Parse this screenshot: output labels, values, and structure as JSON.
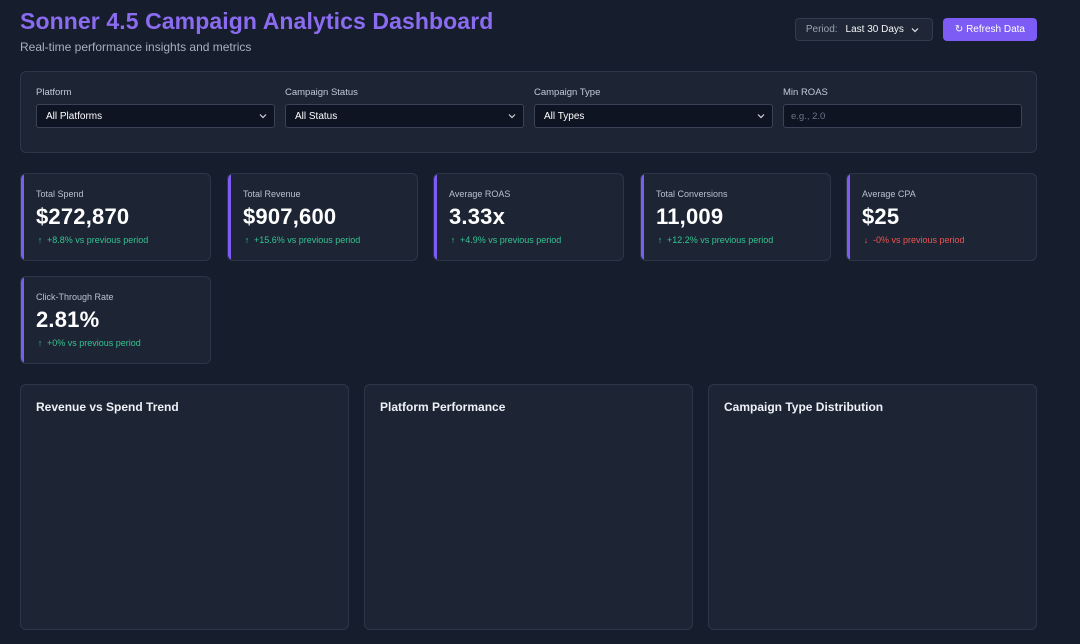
{
  "header": {
    "title": "Sonner 4.5 Campaign Analytics Dashboard",
    "subtitle": "Real-time performance insights and metrics",
    "period_label": "Period:",
    "period_value": "Last 30 Days",
    "refresh_label": "↻ Refresh Data"
  },
  "filters": {
    "platform": {
      "label": "Platform",
      "value": "All Platforms"
    },
    "status": {
      "label": "Campaign Status",
      "value": "All Status"
    },
    "type": {
      "label": "Campaign Type",
      "value": "All Types"
    },
    "min_roas": {
      "label": "Min ROAS",
      "placeholder": "e.g., 2.0"
    }
  },
  "metrics": [
    {
      "label": "Total Spend",
      "value": "$272,870",
      "change": "+8.8% vs previous period",
      "direction": "up"
    },
    {
      "label": "Total Revenue",
      "value": "$907,600",
      "change": "+15.6% vs previous period",
      "direction": "up"
    },
    {
      "label": "Average ROAS",
      "value": "3.33x",
      "change": "+4.9% vs previous period",
      "direction": "up"
    },
    {
      "label": "Total Conversions",
      "value": "11,009",
      "change": "+12.2% vs previous period",
      "direction": "up"
    },
    {
      "label": "Average CPA",
      "value": "$25",
      "change": "-0% vs previous period",
      "direction": "down"
    },
    {
      "label": "Click-Through Rate",
      "value": "2.81%",
      "change": "+0% vs previous period",
      "direction": "up"
    }
  ],
  "panels": [
    {
      "title": "Revenue vs Spend Trend"
    },
    {
      "title": "Platform Performance"
    },
    {
      "title": "Campaign Type Distribution"
    }
  ],
  "icons": {
    "up": "arrow-up-icon",
    "down": "arrow-down-icon",
    "chevron": "chevron-down-icon",
    "refresh": "refresh-icon"
  },
  "colors": {
    "accent": "#7c5cf5",
    "title": "#8b6cf0",
    "positive": "#34c38f",
    "negative": "#ef5350"
  }
}
